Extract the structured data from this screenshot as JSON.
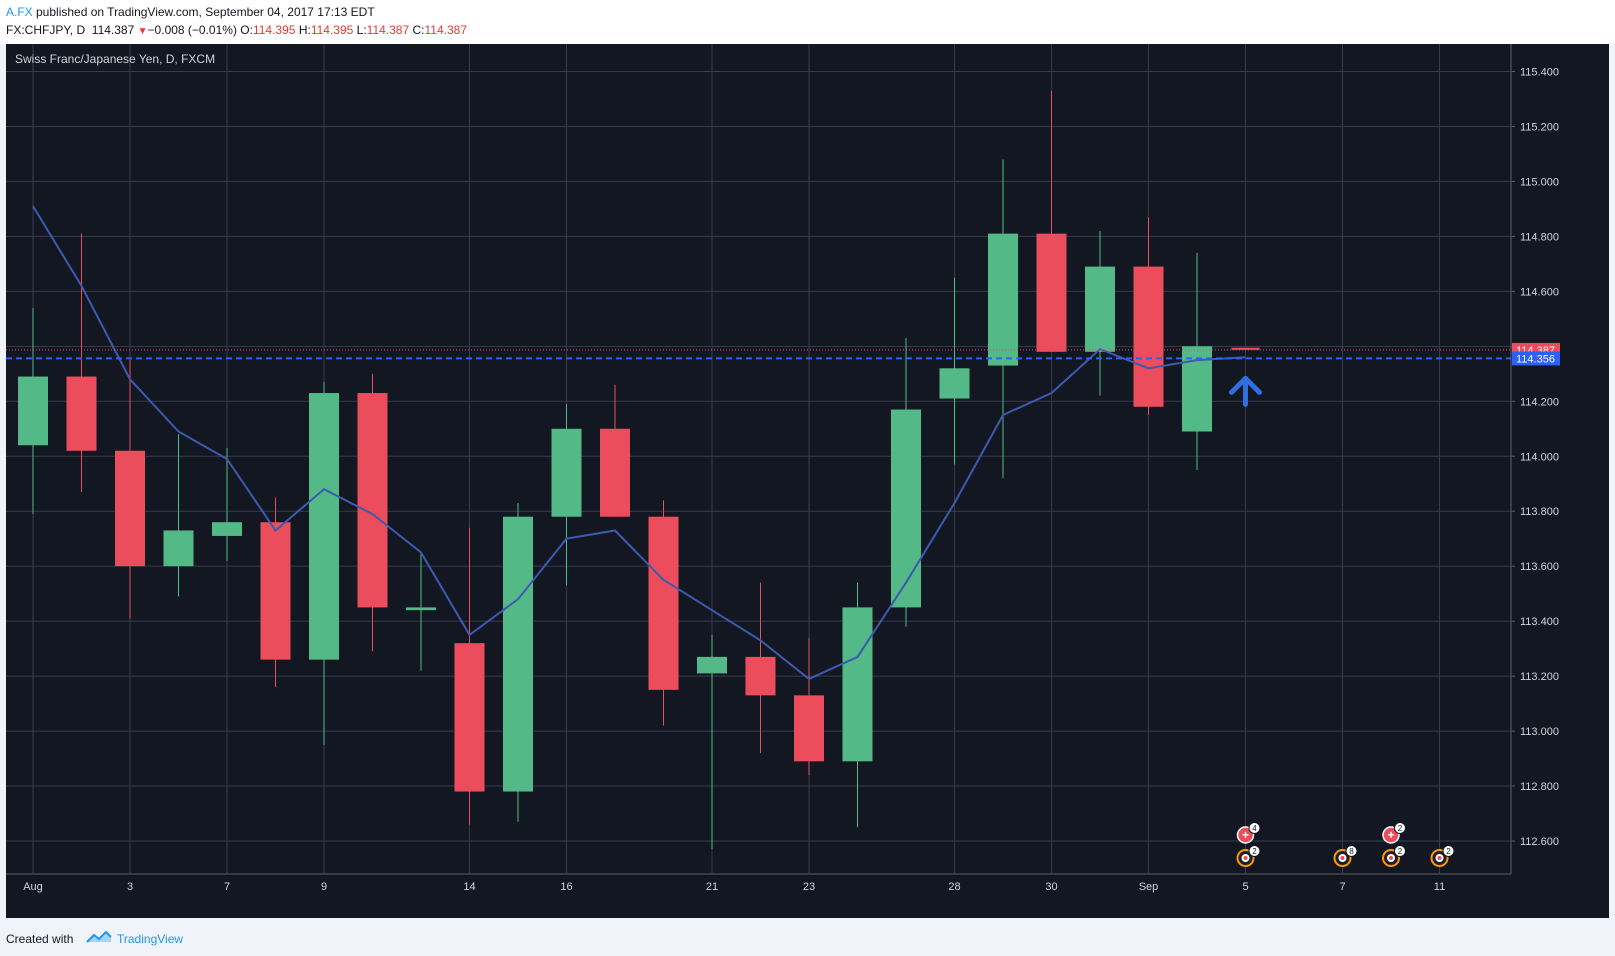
{
  "header": {
    "author": "A.FX",
    "published": " published on TradingView.com, September 04, 2017 17:13 EDT",
    "symbol": "FX:CHFJPY, D",
    "price": "114.387",
    "change": "−0.008 (−0.01%)",
    "o_label": "O:",
    "o_value": "114.395",
    "h_label": "H:",
    "h_value": "114.395",
    "l_label": "L:",
    "l_value": "114.387",
    "c_label": "C:",
    "c_value": "114.387"
  },
  "footer": {
    "created_with": "Created with",
    "brand": "TradingView"
  },
  "colors": {
    "background": "#131722",
    "up": "#53b987",
    "down": "#eb4d5c",
    "ma_line": "#3d5aae",
    "price_line": "#eb4d5c",
    "dashed_line": "#2962ff",
    "grid": "#363c4e",
    "arrow": "#2f6fe0"
  },
  "chart_data": {
    "type": "candlestick",
    "title": "Swiss Franc/Japanese Yen, D, FXCM",
    "ylim": [
      112.48,
      115.5
    ],
    "y_ticks": [
      "115.400",
      "115.200",
      "115.000",
      "114.800",
      "114.600",
      "114.400",
      "114.200",
      "114.000",
      "113.800",
      "113.600",
      "113.400",
      "113.200",
      "113.000",
      "112.800",
      "112.600"
    ],
    "x_ticks": [
      {
        "day": 0,
        "label": "Aug"
      },
      {
        "day": 2,
        "label": "3"
      },
      {
        "day": 4,
        "label": "7"
      },
      {
        "day": 6,
        "label": "9"
      },
      {
        "day": 9,
        "label": "14"
      },
      {
        "day": 11,
        "label": "16"
      },
      {
        "day": 14,
        "label": "21"
      },
      {
        "day": 16,
        "label": "23"
      },
      {
        "day": 19,
        "label": "28"
      },
      {
        "day": 21,
        "label": "30"
      },
      {
        "day": 23,
        "label": "Sep"
      },
      {
        "day": 25,
        "label": "5"
      },
      {
        "day": 27,
        "label": "7"
      },
      {
        "day": 29,
        "label": "11"
      }
    ],
    "candles": [
      {
        "o": 114.04,
        "h": 114.54,
        "l": 113.79,
        "c": 114.29
      },
      {
        "o": 114.29,
        "h": 114.81,
        "l": 113.87,
        "c": 114.02
      },
      {
        "o": 114.02,
        "h": 114.35,
        "l": 113.41,
        "c": 113.6
      },
      {
        "o": 113.6,
        "h": 114.08,
        "l": 113.49,
        "c": 113.73
      },
      {
        "o": 113.71,
        "h": 114.03,
        "l": 113.62,
        "c": 113.76
      },
      {
        "o": 113.76,
        "h": 113.85,
        "l": 113.16,
        "c": 113.26
      },
      {
        "o": 113.26,
        "h": 114.27,
        "l": 112.95,
        "c": 114.23
      },
      {
        "o": 114.23,
        "h": 114.3,
        "l": 113.29,
        "c": 113.45
      },
      {
        "o": 113.44,
        "h": 113.65,
        "l": 113.22,
        "c": 113.45
      },
      {
        "o": 113.32,
        "h": 113.74,
        "l": 112.66,
        "c": 112.78
      },
      {
        "o": 112.78,
        "h": 113.83,
        "l": 112.67,
        "c": 113.78
      },
      {
        "o": 113.78,
        "h": 114.19,
        "l": 113.53,
        "c": 114.1
      },
      {
        "o": 114.1,
        "h": 114.26,
        "l": 113.78,
        "c": 113.78
      },
      {
        "o": 113.78,
        "h": 113.84,
        "l": 113.02,
        "c": 113.15
      },
      {
        "o": 113.21,
        "h": 113.35,
        "l": 112.57,
        "c": 113.27
      },
      {
        "o": 113.27,
        "h": 113.54,
        "l": 112.92,
        "c": 113.13
      },
      {
        "o": 113.13,
        "h": 113.34,
        "l": 112.84,
        "c": 112.89
      },
      {
        "o": 112.89,
        "h": 113.54,
        "l": 112.65,
        "c": 113.45
      },
      {
        "o": 113.45,
        "h": 114.43,
        "l": 113.38,
        "c": 114.17
      },
      {
        "o": 114.21,
        "h": 114.65,
        "l": 113.97,
        "c": 114.32
      },
      {
        "o": 114.33,
        "h": 115.08,
        "l": 113.92,
        "c": 114.81
      },
      {
        "o": 114.81,
        "h": 115.33,
        "l": 114.38,
        "c": 114.38
      },
      {
        "o": 114.38,
        "h": 114.82,
        "l": 114.22,
        "c": 114.69
      },
      {
        "o": 114.69,
        "h": 114.87,
        "l": 114.15,
        "c": 114.18
      },
      {
        "o": 114.09,
        "h": 114.74,
        "l": 113.95,
        "c": 114.4
      },
      {
        "o": 114.395,
        "h": 114.395,
        "l": 114.387,
        "c": 114.387
      }
    ],
    "moving_average": [
      114.91,
      114.62,
      114.28,
      114.09,
      113.99,
      113.73,
      113.88,
      113.79,
      113.65,
      113.35,
      113.48,
      113.7,
      113.73,
      113.55,
      113.44,
      113.33,
      113.19,
      113.27,
      113.54,
      113.83,
      114.15,
      114.23,
      114.39,
      114.32,
      114.35,
      114.36
    ],
    "last_price_label": "114.387",
    "dashed_level": 114.356,
    "dashed_label": "114.356",
    "up_arrow_day": 25,
    "events": [
      {
        "day": 25,
        "type": "red-plus",
        "count": "4"
      },
      {
        "day": 25,
        "type": "orange",
        "count": "2"
      },
      {
        "day": 27,
        "type": "orange",
        "count": "8"
      },
      {
        "day": 28,
        "type": "red-plus",
        "count": "2"
      },
      {
        "day": 28,
        "type": "orange",
        "count": "2"
      },
      {
        "day": 29,
        "type": "orange",
        "count": "2"
      }
    ]
  }
}
